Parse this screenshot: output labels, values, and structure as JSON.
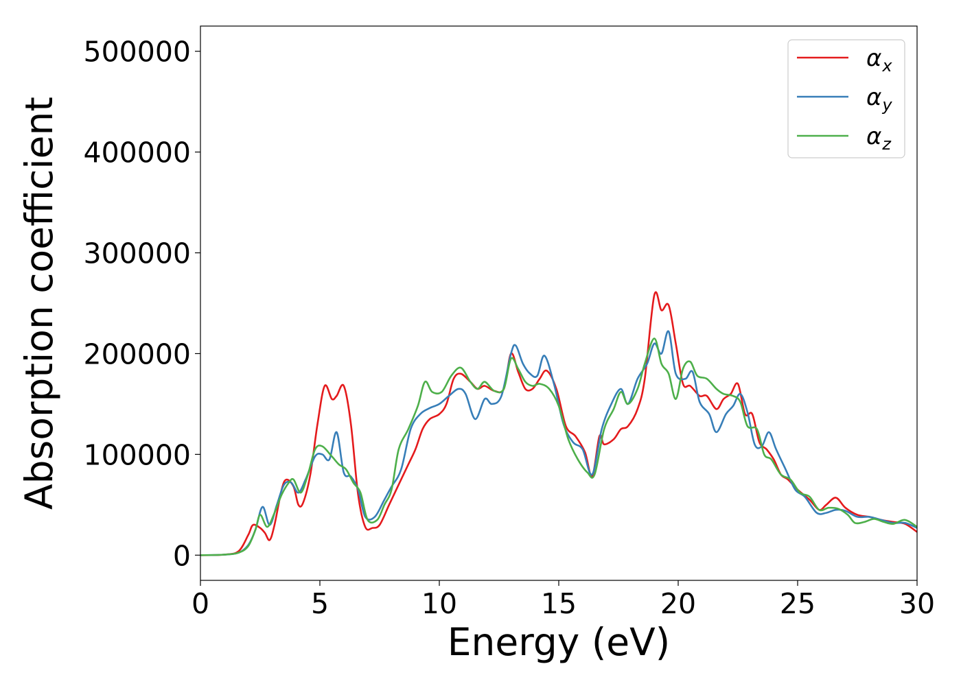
{
  "chart_data": {
    "type": "line",
    "title": "",
    "xlabel": "Energy (eV)",
    "ylabel": "Absorption coefficient",
    "xlim": [
      0,
      30
    ],
    "ylim": [
      -25000,
      525000
    ],
    "xticks": [
      0,
      5,
      10,
      15,
      20,
      25,
      30
    ],
    "yticks": [
      0,
      100000,
      200000,
      300000,
      400000,
      500000
    ],
    "xtick_labels": [
      "0",
      "5",
      "10",
      "15",
      "20",
      "25",
      "30"
    ],
    "ytick_labels": [
      "0",
      "100000",
      "200000",
      "300000",
      "400000",
      "500000"
    ],
    "grid": false,
    "legend": "top-right",
    "series": [
      {
        "name": "α",
        "subscript": "x",
        "color": "#e41a1c",
        "points": [
          [
            0,
            0
          ],
          [
            1,
            500
          ],
          [
            1.6,
            4000
          ],
          [
            2.0,
            20000
          ],
          [
            2.2,
            30000
          ],
          [
            2.5,
            27000
          ],
          [
            2.7,
            22000
          ],
          [
            2.9,
            15000
          ],
          [
            3.1,
            30000
          ],
          [
            3.4,
            65000
          ],
          [
            3.6,
            75000
          ],
          [
            3.9,
            68000
          ],
          [
            4.1,
            50000
          ],
          [
            4.3,
            52000
          ],
          [
            4.6,
            80000
          ],
          [
            4.9,
            130000
          ],
          [
            5.2,
            168000
          ],
          [
            5.5,
            155000
          ],
          [
            5.7,
            158000
          ],
          [
            6.0,
            168000
          ],
          [
            6.3,
            130000
          ],
          [
            6.6,
            60000
          ],
          [
            6.9,
            28000
          ],
          [
            7.2,
            27000
          ],
          [
            7.5,
            30000
          ],
          [
            7.9,
            50000
          ],
          [
            8.3,
            70000
          ],
          [
            8.7,
            90000
          ],
          [
            9.0,
            105000
          ],
          [
            9.3,
            125000
          ],
          [
            9.6,
            135000
          ],
          [
            10.0,
            140000
          ],
          [
            10.3,
            150000
          ],
          [
            10.6,
            175000
          ],
          [
            10.9,
            180000
          ],
          [
            11.3,
            172000
          ],
          [
            11.6,
            165000
          ],
          [
            11.9,
            168000
          ],
          [
            12.3,
            163000
          ],
          [
            12.7,
            165000
          ],
          [
            13.0,
            200000
          ],
          [
            13.3,
            182000
          ],
          [
            13.6,
            165000
          ],
          [
            13.9,
            165000
          ],
          [
            14.2,
            175000
          ],
          [
            14.5,
            183000
          ],
          [
            14.9,
            165000
          ],
          [
            15.3,
            128000
          ],
          [
            15.7,
            118000
          ],
          [
            16.1,
            102000
          ],
          [
            16.4,
            78000
          ],
          [
            16.7,
            118000
          ],
          [
            16.9,
            110000
          ],
          [
            17.3,
            115000
          ],
          [
            17.6,
            125000
          ],
          [
            17.9,
            128000
          ],
          [
            18.3,
            145000
          ],
          [
            18.6,
            175000
          ],
          [
            19.0,
            258000
          ],
          [
            19.3,
            243000
          ],
          [
            19.6,
            248000
          ],
          [
            19.9,
            210000
          ],
          [
            20.2,
            170000
          ],
          [
            20.5,
            168000
          ],
          [
            20.9,
            158000
          ],
          [
            21.2,
            158000
          ],
          [
            21.6,
            145000
          ],
          [
            21.9,
            155000
          ],
          [
            22.2,
            160000
          ],
          [
            22.5,
            170000
          ],
          [
            22.8,
            140000
          ],
          [
            23.1,
            140000
          ],
          [
            23.4,
            112000
          ],
          [
            23.7,
            105000
          ],
          [
            24.0,
            95000
          ],
          [
            24.3,
            80000
          ],
          [
            24.6,
            75000
          ],
          [
            25.0,
            65000
          ],
          [
            25.5,
            55000
          ],
          [
            25.9,
            45000
          ],
          [
            26.2,
            50000
          ],
          [
            26.6,
            57000
          ],
          [
            27.0,
            47000
          ],
          [
            27.5,
            40000
          ],
          [
            28.0,
            38000
          ],
          [
            28.5,
            35000
          ],
          [
            29.0,
            33000
          ],
          [
            29.5,
            31000
          ],
          [
            30.0,
            23000
          ]
        ]
      },
      {
        "name": "α",
        "subscript": "y",
        "color": "#377eb8",
        "points": [
          [
            0,
            0
          ],
          [
            1,
            500
          ],
          [
            1.6,
            2500
          ],
          [
            2.0,
            10000
          ],
          [
            2.3,
            25000
          ],
          [
            2.6,
            48000
          ],
          [
            2.9,
            30000
          ],
          [
            3.2,
            50000
          ],
          [
            3.5,
            70000
          ],
          [
            3.8,
            72000
          ],
          [
            4.1,
            62000
          ],
          [
            4.4,
            75000
          ],
          [
            4.8,
            98000
          ],
          [
            5.1,
            100000
          ],
          [
            5.4,
            95000
          ],
          [
            5.7,
            122000
          ],
          [
            6.0,
            82000
          ],
          [
            6.3,
            78000
          ],
          [
            6.6,
            65000
          ],
          [
            6.9,
            38000
          ],
          [
            7.3,
            38000
          ],
          [
            7.7,
            55000
          ],
          [
            8.0,
            68000
          ],
          [
            8.4,
            85000
          ],
          [
            8.8,
            125000
          ],
          [
            9.2,
            140000
          ],
          [
            9.6,
            146000
          ],
          [
            10.0,
            150000
          ],
          [
            10.4,
            158000
          ],
          [
            10.8,
            165000
          ],
          [
            11.1,
            160000
          ],
          [
            11.5,
            135000
          ],
          [
            11.9,
            155000
          ],
          [
            12.2,
            150000
          ],
          [
            12.6,
            158000
          ],
          [
            13.0,
            200000
          ],
          [
            13.2,
            208000
          ],
          [
            13.5,
            190000
          ],
          [
            13.8,
            180000
          ],
          [
            14.1,
            178000
          ],
          [
            14.4,
            198000
          ],
          [
            14.8,
            170000
          ],
          [
            15.2,
            130000
          ],
          [
            15.6,
            112000
          ],
          [
            16.0,
            105000
          ],
          [
            16.4,
            80000
          ],
          [
            16.8,
            125000
          ],
          [
            17.2,
            150000
          ],
          [
            17.6,
            165000
          ],
          [
            17.9,
            150000
          ],
          [
            18.3,
            175000
          ],
          [
            18.7,
            190000
          ],
          [
            19.0,
            210000
          ],
          [
            19.3,
            200000
          ],
          [
            19.6,
            222000
          ],
          [
            19.9,
            180000
          ],
          [
            20.3,
            175000
          ],
          [
            20.6,
            182000
          ],
          [
            20.9,
            152000
          ],
          [
            21.3,
            140000
          ],
          [
            21.6,
            122000
          ],
          [
            22.0,
            140000
          ],
          [
            22.3,
            148000
          ],
          [
            22.6,
            160000
          ],
          [
            22.9,
            142000
          ],
          [
            23.2,
            110000
          ],
          [
            23.5,
            108000
          ],
          [
            23.8,
            122000
          ],
          [
            24.1,
            105000
          ],
          [
            24.5,
            85000
          ],
          [
            24.9,
            65000
          ],
          [
            25.3,
            58000
          ],
          [
            25.8,
            42000
          ],
          [
            26.2,
            42000
          ],
          [
            26.6,
            45000
          ],
          [
            27.0,
            44000
          ],
          [
            27.5,
            38000
          ],
          [
            28.0,
            38000
          ],
          [
            28.5,
            35000
          ],
          [
            29.0,
            32000
          ],
          [
            29.5,
            32000
          ],
          [
            30.0,
            27000
          ]
        ]
      },
      {
        "name": "α",
        "subscript": "z",
        "color": "#4daf4a",
        "points": [
          [
            0,
            0
          ],
          [
            1,
            500
          ],
          [
            1.6,
            2500
          ],
          [
            2.0,
            9000
          ],
          [
            2.3,
            25000
          ],
          [
            2.5,
            40000
          ],
          [
            2.8,
            28000
          ],
          [
            3.1,
            42000
          ],
          [
            3.4,
            60000
          ],
          [
            3.7,
            72000
          ],
          [
            3.9,
            75000
          ],
          [
            4.2,
            62000
          ],
          [
            4.5,
            80000
          ],
          [
            4.8,
            105000
          ],
          [
            5.1,
            108000
          ],
          [
            5.5,
            98000
          ],
          [
            5.8,
            90000
          ],
          [
            6.1,
            85000
          ],
          [
            6.4,
            72000
          ],
          [
            6.7,
            62000
          ],
          [
            7.0,
            35000
          ],
          [
            7.4,
            35000
          ],
          [
            7.7,
            50000
          ],
          [
            8.0,
            65000
          ],
          [
            8.3,
            105000
          ],
          [
            8.7,
            125000
          ],
          [
            9.1,
            148000
          ],
          [
            9.4,
            172000
          ],
          [
            9.7,
            162000
          ],
          [
            10.1,
            162000
          ],
          [
            10.5,
            178000
          ],
          [
            10.9,
            186000
          ],
          [
            11.3,
            172000
          ],
          [
            11.6,
            165000
          ],
          [
            11.9,
            172000
          ],
          [
            12.3,
            163000
          ],
          [
            12.7,
            165000
          ],
          [
            13.0,
            195000
          ],
          [
            13.3,
            185000
          ],
          [
            13.6,
            172000
          ],
          [
            13.9,
            168000
          ],
          [
            14.2,
            170000
          ],
          [
            14.6,
            165000
          ],
          [
            15.0,
            148000
          ],
          [
            15.4,
            115000
          ],
          [
            15.8,
            95000
          ],
          [
            16.2,
            82000
          ],
          [
            16.5,
            80000
          ],
          [
            16.9,
            125000
          ],
          [
            17.3,
            145000
          ],
          [
            17.6,
            162000
          ],
          [
            17.9,
            150000
          ],
          [
            18.3,
            165000
          ],
          [
            18.6,
            190000
          ],
          [
            19.0,
            215000
          ],
          [
            19.3,
            190000
          ],
          [
            19.6,
            180000
          ],
          [
            19.9,
            155000
          ],
          [
            20.2,
            185000
          ],
          [
            20.5,
            192000
          ],
          [
            20.8,
            178000
          ],
          [
            21.2,
            175000
          ],
          [
            21.6,
            165000
          ],
          [
            21.9,
            160000
          ],
          [
            22.3,
            158000
          ],
          [
            22.6,
            152000
          ],
          [
            22.9,
            128000
          ],
          [
            23.3,
            125000
          ],
          [
            23.6,
            100000
          ],
          [
            23.9,
            95000
          ],
          [
            24.3,
            80000
          ],
          [
            24.7,
            75000
          ],
          [
            25.1,
            62000
          ],
          [
            25.5,
            58000
          ],
          [
            25.9,
            45000
          ],
          [
            26.3,
            47000
          ],
          [
            26.7,
            46000
          ],
          [
            27.1,
            40000
          ],
          [
            27.4,
            32000
          ],
          [
            27.8,
            33000
          ],
          [
            28.2,
            36000
          ],
          [
            28.6,
            33000
          ],
          [
            29.0,
            31000
          ],
          [
            29.5,
            35000
          ],
          [
            30.0,
            28000
          ]
        ]
      }
    ]
  }
}
